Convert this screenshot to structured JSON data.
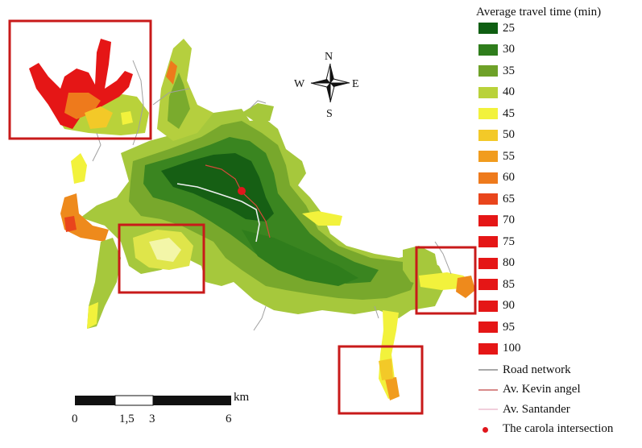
{
  "legend": {
    "title": "Average travel time (min)",
    "classes": [
      {
        "label": "25",
        "color": "#0f5e12"
      },
      {
        "label": "30",
        "color": "#2f7d1c"
      },
      {
        "label": "35",
        "color": "#6ea128"
      },
      {
        "label": "40",
        "color": "#b9d23a"
      },
      {
        "label": "45",
        "color": "#f2f23c"
      },
      {
        "label": "50",
        "color": "#f3c928"
      },
      {
        "label": "55",
        "color": "#f19c1e"
      },
      {
        "label": "60",
        "color": "#ee7a1c"
      },
      {
        "label": "65",
        "color": "#e9451c"
      },
      {
        "label": "70",
        "color": "#e51616"
      },
      {
        "label": "75",
        "color": "#e51616"
      },
      {
        "label": "80",
        "color": "#e51616"
      },
      {
        "label": "85",
        "color": "#e51616"
      },
      {
        "label": "90",
        "color": "#e51616"
      },
      {
        "label": "95",
        "color": "#e51616"
      },
      {
        "label": "100",
        "color": "#e51616"
      }
    ],
    "lines": [
      {
        "label": "Road network",
        "color": "#a9a9a9",
        "kind": "line"
      },
      {
        "label": "Av. Kevin angel",
        "color": "#d88a8a",
        "kind": "line"
      },
      {
        "label": "Av. Santander",
        "color": "#f1cfdc",
        "kind": "line"
      },
      {
        "label": "The carola intersection",
        "color": "#e0161c",
        "kind": "dot"
      }
    ]
  },
  "compass": {
    "n": "N",
    "s": "S",
    "e": "E",
    "w": "W"
  },
  "scale": {
    "unit": "km",
    "ticks": [
      "0",
      "1,5",
      "3",
      "6"
    ]
  }
}
